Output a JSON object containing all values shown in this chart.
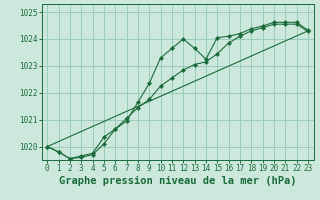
{
  "title": "Graphe pression niveau de la mer (hPa)",
  "bg_color": "#cce8dc",
  "grid_color": "#99ccbb",
  "line_color": "#1a6b3a",
  "marker_color": "#1a6b3a",
  "xlim": [
    -0.5,
    23.5
  ],
  "ylim": [
    1019.5,
    1025.3
  ],
  "xticks": [
    0,
    1,
    2,
    3,
    4,
    5,
    6,
    7,
    8,
    9,
    10,
    11,
    12,
    13,
    14,
    15,
    16,
    17,
    18,
    19,
    20,
    21,
    22,
    23
  ],
  "yticks": [
    1020,
    1021,
    1022,
    1023,
    1024,
    1025
  ],
  "series1_x": [
    0,
    1,
    2,
    3,
    4,
    5,
    6,
    7,
    8,
    9,
    10,
    11,
    12,
    13,
    14,
    15,
    16,
    17,
    18,
    19,
    20,
    21,
    22,
    23
  ],
  "series1_y": [
    1020.0,
    1019.8,
    1019.55,
    1019.6,
    1019.7,
    1020.1,
    1020.65,
    1020.95,
    1021.65,
    1022.35,
    1023.3,
    1023.65,
    1024.0,
    1023.65,
    1023.25,
    1024.05,
    1024.1,
    1024.2,
    1024.38,
    1024.48,
    1024.62,
    1024.62,
    1024.62,
    1024.32
  ],
  "series2_x": [
    0,
    1,
    2,
    3,
    4,
    5,
    6,
    7,
    8,
    9,
    10,
    11,
    12,
    13,
    14,
    15,
    16,
    17,
    18,
    19,
    20,
    21,
    22,
    23
  ],
  "series2_y": [
    1020.0,
    1019.8,
    1019.55,
    1019.65,
    1019.75,
    1020.35,
    1020.65,
    1021.05,
    1021.45,
    1021.75,
    1022.25,
    1022.55,
    1022.85,
    1023.05,
    1023.15,
    1023.45,
    1023.85,
    1024.1,
    1024.3,
    1024.42,
    1024.55,
    1024.55,
    1024.55,
    1024.28
  ],
  "series3_x": [
    0,
    23
  ],
  "series3_y": [
    1020.0,
    1024.3
  ],
  "title_fontsize": 7.5,
  "tick_fontsize": 5.5
}
